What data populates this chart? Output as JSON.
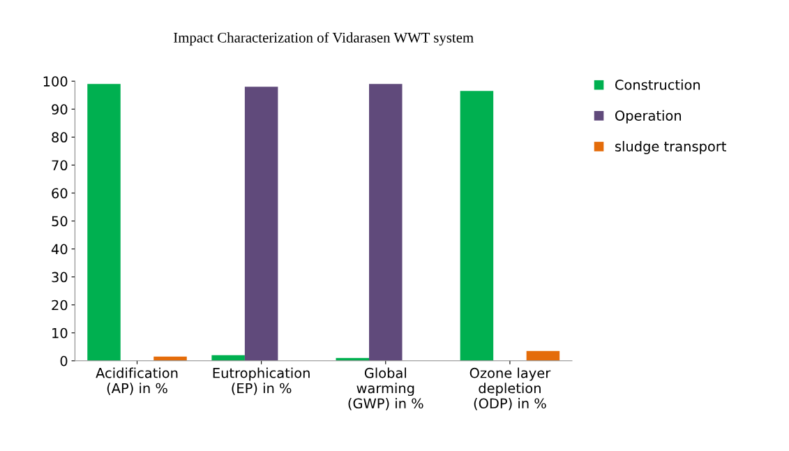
{
  "chart_data": {
    "type": "bar",
    "title": "Impact Characterization of Vidarasen WWT system",
    "categories": [
      "Acidification\n(AP) in %",
      "Eutrophication\n(EP) in %",
      "Global\nwarming\n(GWP) in %",
      "Ozone layer\ndepletion\n(ODP) in %"
    ],
    "series": [
      {
        "name": "Construction",
        "color": "#00b050",
        "values": [
          99,
          2,
          1,
          96.5
        ]
      },
      {
        "name": "Operation",
        "color": "#604a7b",
        "values": [
          0,
          98,
          99,
          0
        ]
      },
      {
        "name": "sludge transport",
        "color": "#e46c0a",
        "values": [
          1.5,
          0,
          0,
          3.5
        ]
      }
    ],
    "ylim": [
      0,
      100
    ],
    "yticks": [
      0,
      10,
      20,
      30,
      40,
      50,
      60,
      70,
      80,
      90,
      100
    ],
    "grid": false,
    "legend": "top right"
  }
}
